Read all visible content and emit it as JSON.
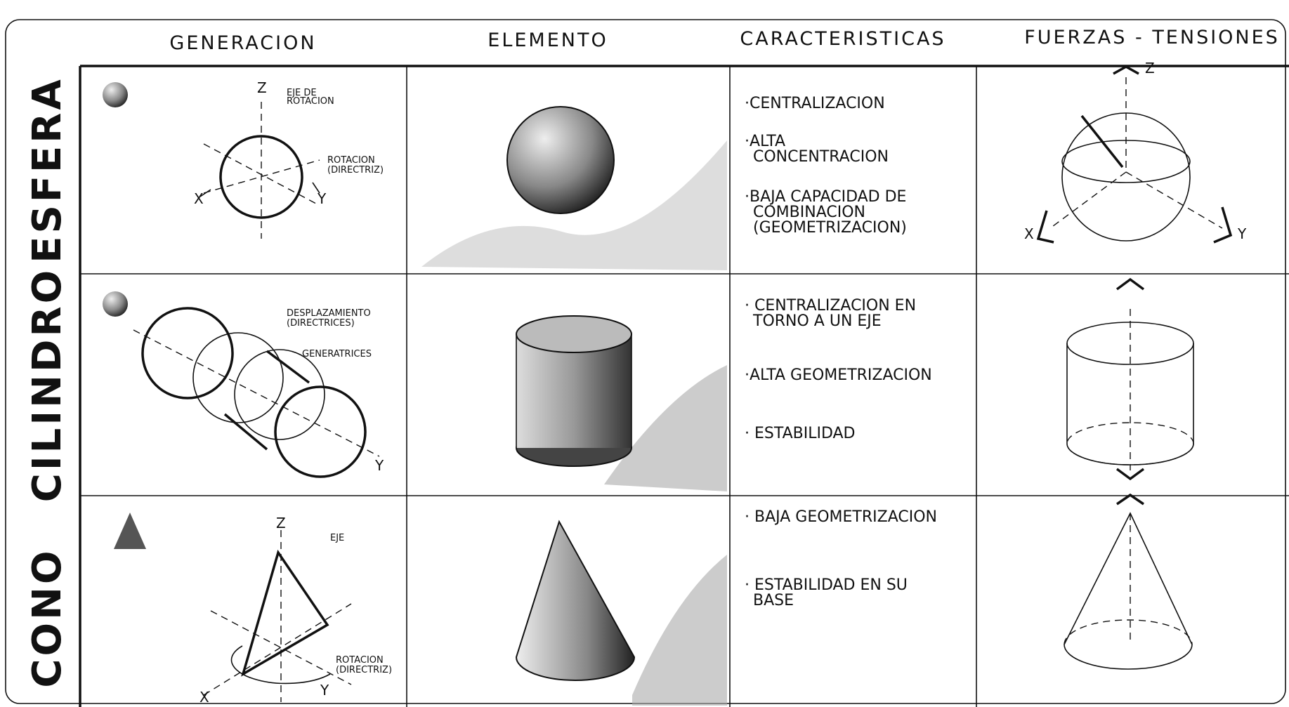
{
  "header": {
    "columns": [
      "GENERACION",
      "ELEMENTO",
      "CARACTERISTICAS",
      "FUERZAS - TENSIONES"
    ]
  },
  "rows": [
    {
      "label": "ESFERA",
      "generation_labels": [
        "Z",
        "EJE DE",
        "ROTACION",
        "ROTACION",
        "(DIRECTRIZ)",
        "X",
        "Y"
      ],
      "characteristics": [
        [
          "·CENTRALIZACION"
        ],
        [
          "·ALTA",
          "CONCENTRACION"
        ],
        [
          "·BAJA CAPACIDAD DE",
          "COMBINACION",
          "(GEOMETRIZACION)"
        ]
      ],
      "forces_labels": [
        "Z",
        "X",
        "Y"
      ]
    },
    {
      "label": "CILINDRO",
      "generation_labels": [
        "DESPLAZAMIENTO",
        "(DIRECTRICES)",
        "GENERATRICES",
        "Y"
      ],
      "characteristics": [
        [
          "· CENTRALIZACION EN",
          "TORNO A UN EJE"
        ],
        [
          "·ALTA GEOMETRIZACION"
        ],
        [
          "· ESTABILIDAD"
        ]
      ],
      "forces_labels": []
    },
    {
      "label": "CONO",
      "generation_labels": [
        "Z",
        "EJE",
        "ROTACION",
        "(DIRECTRIZ)",
        "X",
        "Y"
      ],
      "characteristics": [
        [
          "· BAJA GEOMETRIZACION"
        ],
        [
          "· ESTABILIDAD EN SU",
          "BASE"
        ]
      ],
      "forces_labels": []
    }
  ]
}
